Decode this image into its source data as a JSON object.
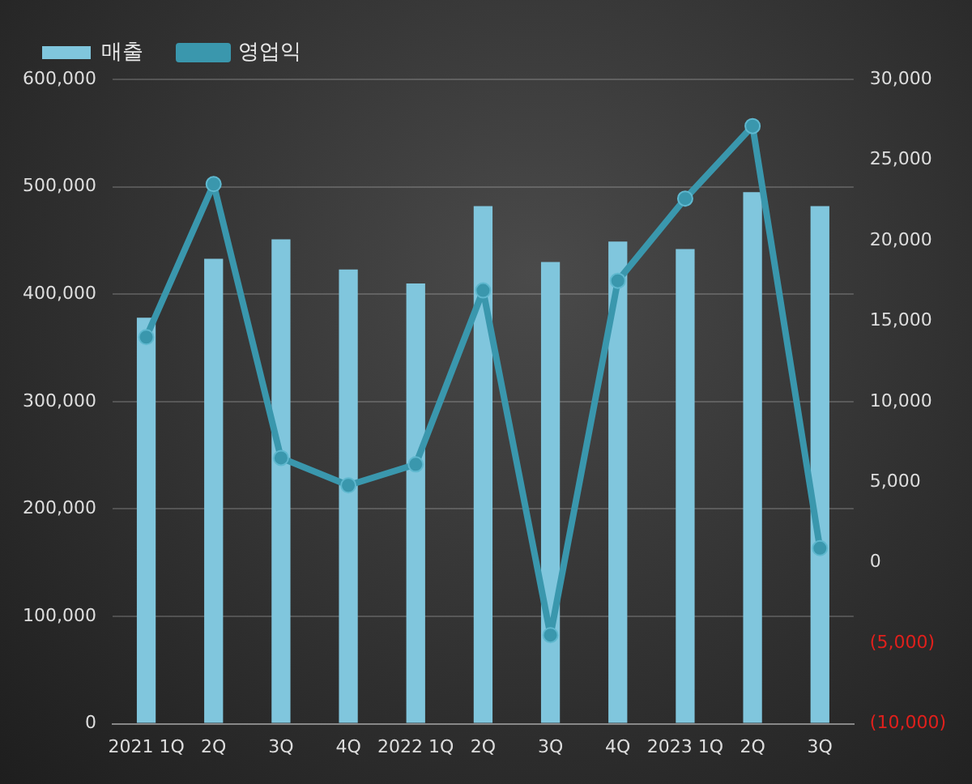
{
  "chart_data": {
    "type": "bar",
    "categories": [
      "2021 1Q",
      "2Q",
      "3Q",
      "4Q",
      "2022 1Q",
      "2Q",
      "3Q",
      "4Q",
      "2023 1Q",
      "2Q",
      "3Q"
    ],
    "series": [
      {
        "name": "매출",
        "color": "#80c6dd",
        "values": [
          378000,
          433000,
          451000,
          423000,
          410000,
          482000,
          430000,
          449000,
          442000,
          495000,
          482000
        ]
      },
      {
        "name": "영업익",
        "type": "line",
        "axis": "y2",
        "color": "#3a97ad",
        "values": [
          14000,
          23500,
          6500,
          4800,
          6100,
          16900,
          -4500,
          17500,
          22600,
          27100,
          900
        ]
      }
    ],
    "ylim": [
      0,
      600000
    ],
    "yticks": [
      0,
      {
        "value": 100000,
        "label": "100,000"
      },
      {
        "value": 200000,
        "label": "200,000"
      },
      {
        "value": 300000,
        "label": "300,000"
      },
      {
        "value": 400000,
        "label": "400,000"
      },
      {
        "value": 500000,
        "label": "500,000"
      },
      {
        "value": 600000,
        "label": "600,000"
      }
    ],
    "y2lim": [
      -10000,
      30000
    ],
    "y2ticks": [
      {
        "value": -10000,
        "label": "(10,000)"
      },
      {
        "value": -5000,
        "label": "(5,000)"
      },
      0,
      {
        "value": 5000,
        "label": "5,000"
      },
      {
        "value": 10000,
        "label": "10,000"
      },
      {
        "value": 15000,
        "label": "15,000"
      },
      {
        "value": 20000,
        "label": "20,000"
      },
      {
        "value": 25000,
        "label": "25,000"
      },
      {
        "value": 30000,
        "label": "30,000"
      }
    ],
    "grid": "y",
    "legend": "top left",
    "marker": "circle",
    "line_style": "solid"
  }
}
